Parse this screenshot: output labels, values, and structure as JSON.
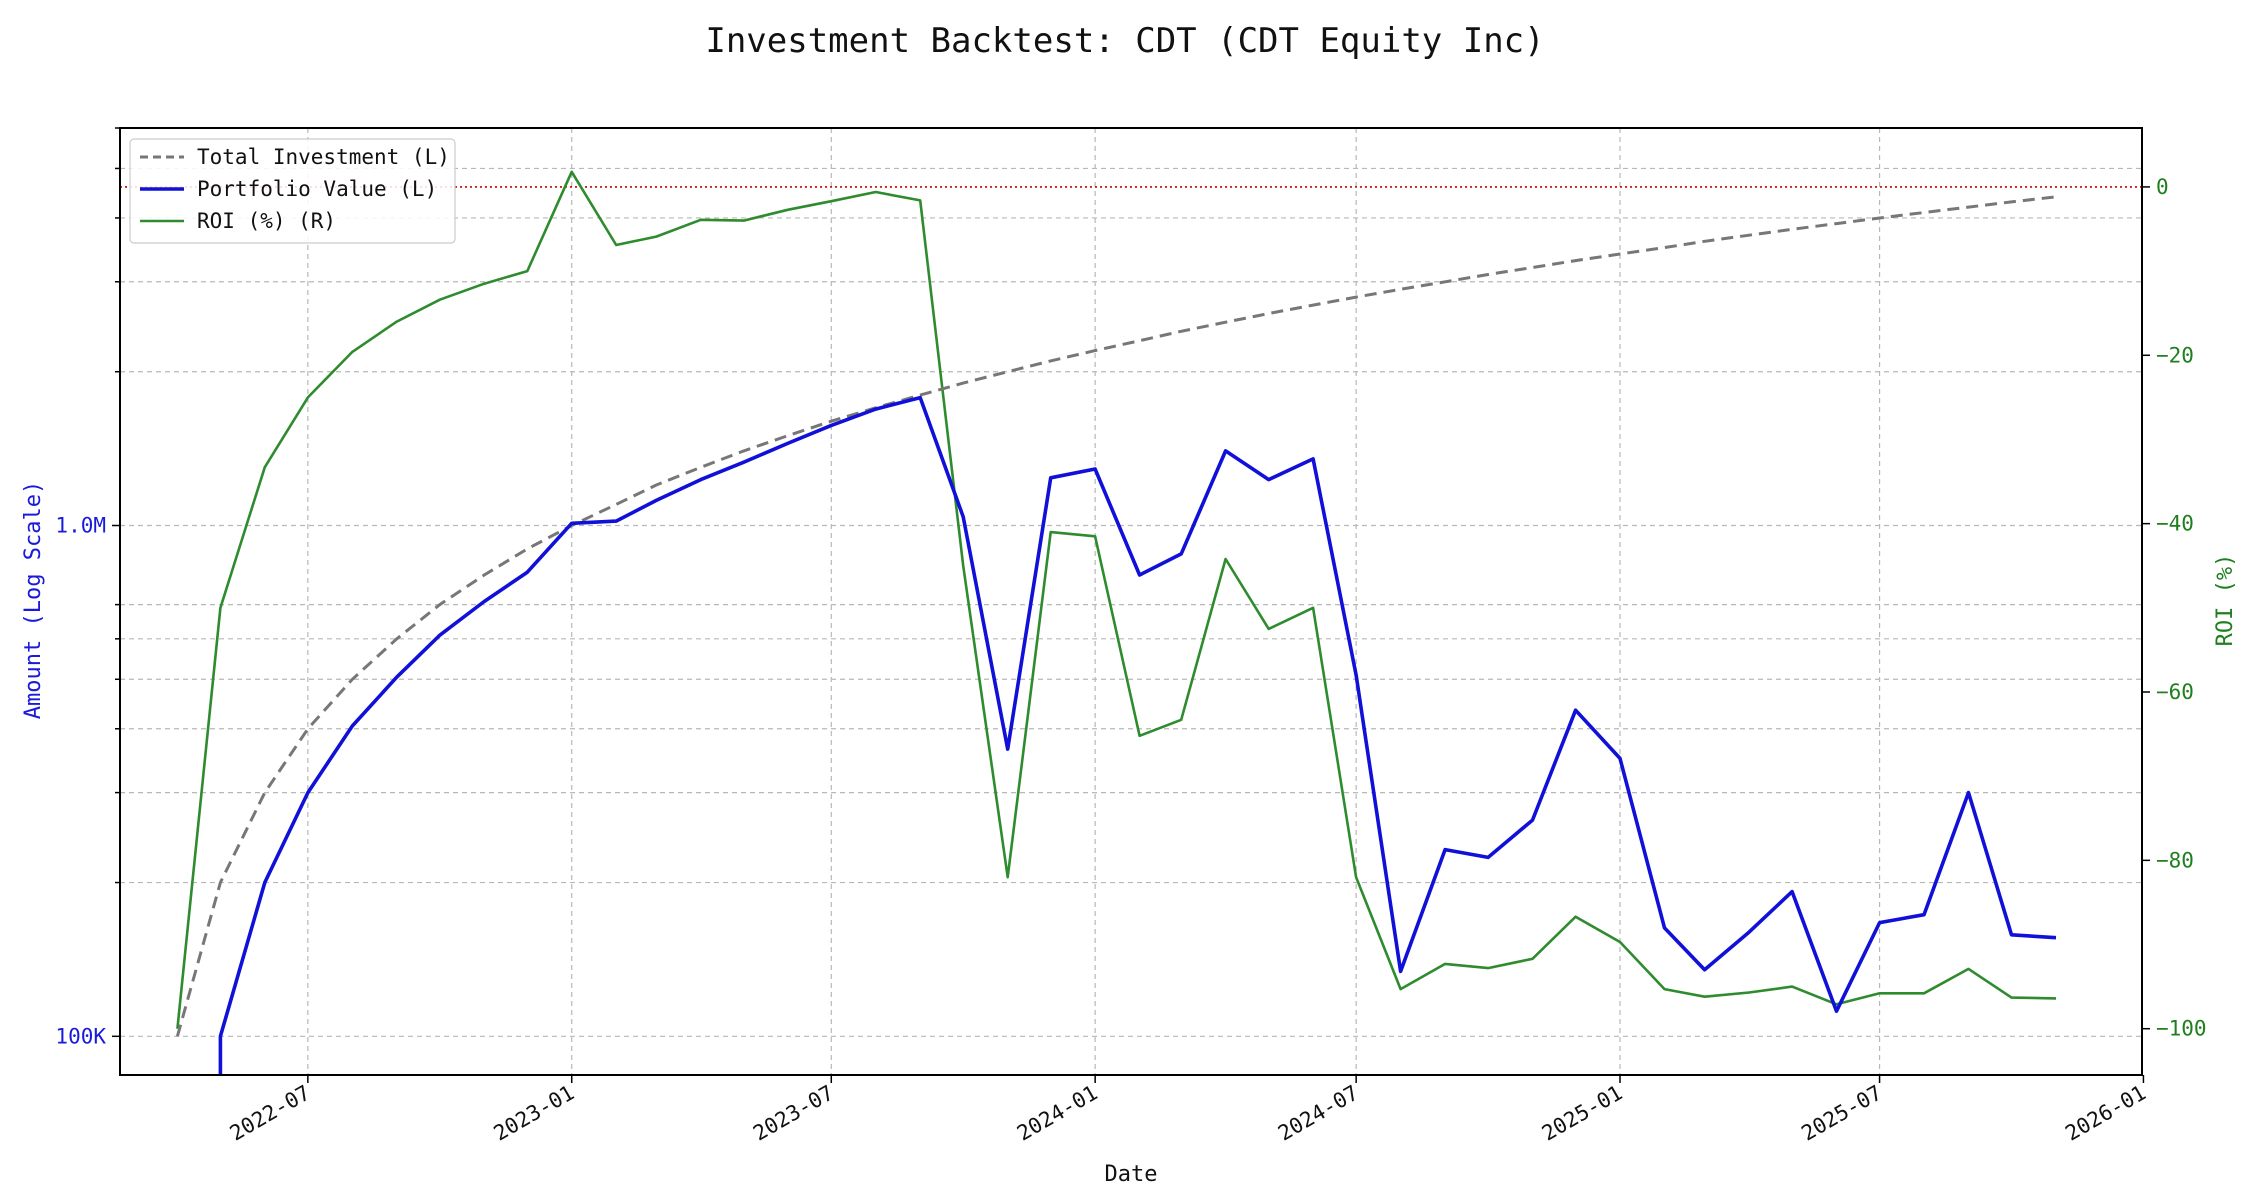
{
  "chart_data": {
    "type": "line",
    "title": "Investment Backtest: CDT (CDT Equity Inc)",
    "xlabel": "Date",
    "ylabel_left": "Amount (Log Scale)",
    "ylabel_right": "ROI (%)",
    "left_axis": {
      "scale": "log",
      "range": [
        84000,
        6000000
      ],
      "ticks": [
        {
          "value": 100000,
          "label": "100K"
        },
        {
          "value": 1000000,
          "label": "1.0M"
        }
      ],
      "color": "#1a1adb"
    },
    "right_axis": {
      "scale": "linear",
      "range": [
        -105.5,
        7
      ],
      "ticks": [
        {
          "value": 0,
          "label": "0"
        },
        {
          "value": -20,
          "label": "−20"
        },
        {
          "value": -40,
          "label": "−40"
        },
        {
          "value": -60,
          "label": "−60"
        },
        {
          "value": -80,
          "label": "−80"
        },
        {
          "value": -100,
          "label": "−100"
        }
      ],
      "color": "#1f7f1f"
    },
    "x_axis": {
      "range": [
        "2022-02-20",
        "2025-12-31"
      ],
      "ticks": [
        {
          "value": "2022-07-01",
          "label": "2022-07"
        },
        {
          "value": "2023-01-01",
          "label": "2023-01"
        },
        {
          "value": "2023-07-01",
          "label": "2023-07"
        },
        {
          "value": "2024-01-01",
          "label": "2024-01"
        },
        {
          "value": "2024-07-01",
          "label": "2024-07"
        },
        {
          "value": "2025-01-01",
          "label": "2025-01"
        },
        {
          "value": "2025-07-01",
          "label": "2025-07"
        },
        {
          "value": "2026-01-01",
          "label": "2026-01"
        }
      ]
    },
    "reference_line": {
      "axis": "right",
      "value": 0,
      "color": "#cc0000",
      "style": "dotted"
    },
    "grid": true,
    "legend": {
      "position": "top-left",
      "entries": [
        {
          "label": "Total Investment (L)",
          "series": "total_investment"
        },
        {
          "label": "Portfolio Value (L)",
          "series": "portfolio_value"
        },
        {
          "label": "ROI (%) (R)",
          "series": "roi"
        }
      ]
    },
    "series": [
      {
        "key": "total_investment",
        "axis": "left",
        "color": "#777777",
        "dash": "12 7",
        "width": 3,
        "points": [
          [
            "2022-04-01",
            100000
          ],
          [
            "2022-05-01",
            200000
          ],
          [
            "2022-06-01",
            300000
          ],
          [
            "2022-07-01",
            400000
          ],
          [
            "2022-08-01",
            500000
          ],
          [
            "2022-09-01",
            600000
          ],
          [
            "2022-10-01",
            700000
          ],
          [
            "2022-11-01",
            800000
          ],
          [
            "2022-12-01",
            900000
          ],
          [
            "2023-01-01",
            1000000
          ],
          [
            "2023-02-01",
            1100000
          ],
          [
            "2023-03-01",
            1200000
          ],
          [
            "2023-04-01",
            1300000
          ],
          [
            "2023-05-01",
            1400000
          ],
          [
            "2023-06-01",
            1500000
          ],
          [
            "2023-07-01",
            1600000
          ],
          [
            "2023-08-01",
            1700000
          ],
          [
            "2023-09-01",
            1800000
          ],
          [
            "2023-10-01",
            1900000
          ],
          [
            "2023-11-01",
            2000000
          ],
          [
            "2023-12-01",
            2100000
          ],
          [
            "2024-01-01",
            2200000
          ],
          [
            "2024-02-01",
            2300000
          ],
          [
            "2024-03-01",
            2400000
          ],
          [
            "2024-04-01",
            2500000
          ],
          [
            "2024-05-01",
            2600000
          ],
          [
            "2024-06-01",
            2700000
          ],
          [
            "2024-07-01",
            2800000
          ],
          [
            "2024-08-01",
            2900000
          ],
          [
            "2024-09-01",
            3000000
          ],
          [
            "2024-10-01",
            3100000
          ],
          [
            "2024-11-01",
            3200000
          ],
          [
            "2024-12-01",
            3300000
          ],
          [
            "2025-01-01",
            3400000
          ],
          [
            "2025-02-01",
            3500000
          ],
          [
            "2025-03-01",
            3600000
          ],
          [
            "2025-04-01",
            3700000
          ],
          [
            "2025-05-01",
            3800000
          ],
          [
            "2025-06-01",
            3900000
          ],
          [
            "2025-07-01",
            4000000
          ],
          [
            "2025-08-01",
            4100000
          ],
          [
            "2025-09-01",
            4200000
          ],
          [
            "2025-10-01",
            4300000
          ],
          [
            "2025-11-01",
            4400000
          ]
        ]
      },
      {
        "key": "portfolio_value",
        "axis": "left",
        "color": "#1010d8",
        "dash": "",
        "width": 3.6,
        "points": [
          [
            "2022-05-01",
            80000
          ],
          [
            "2022-05-01",
            100000
          ],
          [
            "2022-06-01",
            200000
          ],
          [
            "2022-07-01",
            300000
          ],
          [
            "2022-08-01",
            405000
          ],
          [
            "2022-09-01",
            505000
          ],
          [
            "2022-10-01",
            610000
          ],
          [
            "2022-11-01",
            710000
          ],
          [
            "2022-12-01",
            810000
          ],
          [
            "2023-01-01",
            1010000
          ],
          [
            "2023-02-01",
            1020000
          ],
          [
            "2023-03-01",
            1120000
          ],
          [
            "2023-04-01",
            1230000
          ],
          [
            "2023-05-01",
            1330000
          ],
          [
            "2023-06-01",
            1450000
          ],
          [
            "2023-07-01",
            1570000
          ],
          [
            "2023-08-01",
            1690000
          ],
          [
            "2023-09-01",
            1780000
          ],
          [
            "2023-10-01",
            1040000
          ],
          [
            "2023-11-01",
            365000
          ],
          [
            "2023-12-01",
            1240000
          ],
          [
            "2024-01-01",
            1290000
          ],
          [
            "2024-02-01",
            800000
          ],
          [
            "2024-03-01",
            880000
          ],
          [
            "2024-04-01",
            1400000
          ],
          [
            "2024-05-01",
            1230000
          ],
          [
            "2024-06-01",
            1350000
          ],
          [
            "2024-07-01",
            510000
          ],
          [
            "2024-08-01",
            134000
          ],
          [
            "2024-09-01",
            232000
          ],
          [
            "2024-10-01",
            224000
          ],
          [
            "2024-11-01",
            265000
          ],
          [
            "2024-12-01",
            435000
          ],
          [
            "2025-01-01",
            350000
          ],
          [
            "2025-02-01",
            163000
          ],
          [
            "2025-03-01",
            135000
          ],
          [
            "2025-04-01",
            160000
          ],
          [
            "2025-05-01",
            192000
          ],
          [
            "2025-06-01",
            112000
          ],
          [
            "2025-07-01",
            167000
          ],
          [
            "2025-08-01",
            173000
          ],
          [
            "2025-09-01",
            300000
          ],
          [
            "2025-10-01",
            158000
          ],
          [
            "2025-11-01",
            156000
          ]
        ]
      },
      {
        "key": "roi",
        "axis": "right",
        "color": "#2e8b2e",
        "dash": "",
        "width": 2.6,
        "points": [
          [
            "2022-04-01",
            -100
          ],
          [
            "2022-05-01",
            -50
          ],
          [
            "2022-06-01",
            -33.3
          ],
          [
            "2022-07-01",
            -25
          ],
          [
            "2022-08-01",
            -19.6
          ],
          [
            "2022-09-01",
            -16
          ],
          [
            "2022-10-01",
            -13.4
          ],
          [
            "2022-11-01",
            -11.5
          ],
          [
            "2022-12-01",
            -10
          ],
          [
            "2023-01-01",
            1.8
          ],
          [
            "2023-02-01",
            -6.9
          ],
          [
            "2023-03-01",
            -5.9
          ],
          [
            "2023-04-01",
            -3.9
          ],
          [
            "2023-05-01",
            -4
          ],
          [
            "2023-06-01",
            -2.7
          ],
          [
            "2023-07-01",
            -1.7
          ],
          [
            "2023-08-01",
            -0.6
          ],
          [
            "2023-09-01",
            -1.6
          ],
          [
            "2023-10-01",
            -45
          ],
          [
            "2023-11-01",
            -82
          ],
          [
            "2023-12-01",
            -41
          ],
          [
            "2024-01-01",
            -41.5
          ],
          [
            "2024-02-01",
            -65.2
          ],
          [
            "2024-03-01",
            -63.3
          ],
          [
            "2024-04-01",
            -44.2
          ],
          [
            "2024-05-01",
            -52.5
          ],
          [
            "2024-06-01",
            -50
          ],
          [
            "2024-07-01",
            -82
          ],
          [
            "2024-08-01",
            -95.3
          ],
          [
            "2024-09-01",
            -92.3
          ],
          [
            "2024-10-01",
            -92.8
          ],
          [
            "2024-11-01",
            -91.7
          ],
          [
            "2024-12-01",
            -86.7
          ],
          [
            "2025-01-01",
            -89.7
          ],
          [
            "2025-02-01",
            -95.3
          ],
          [
            "2025-03-01",
            -96.2
          ],
          [
            "2025-04-01",
            -95.7
          ],
          [
            "2025-05-01",
            -95
          ],
          [
            "2025-06-01",
            -97.1
          ],
          [
            "2025-07-01",
            -95.8
          ],
          [
            "2025-08-01",
            -95.8
          ],
          [
            "2025-09-01",
            -92.9
          ],
          [
            "2025-10-01",
            -96.3
          ],
          [
            "2025-11-01",
            -96.4
          ]
        ]
      }
    ]
  }
}
